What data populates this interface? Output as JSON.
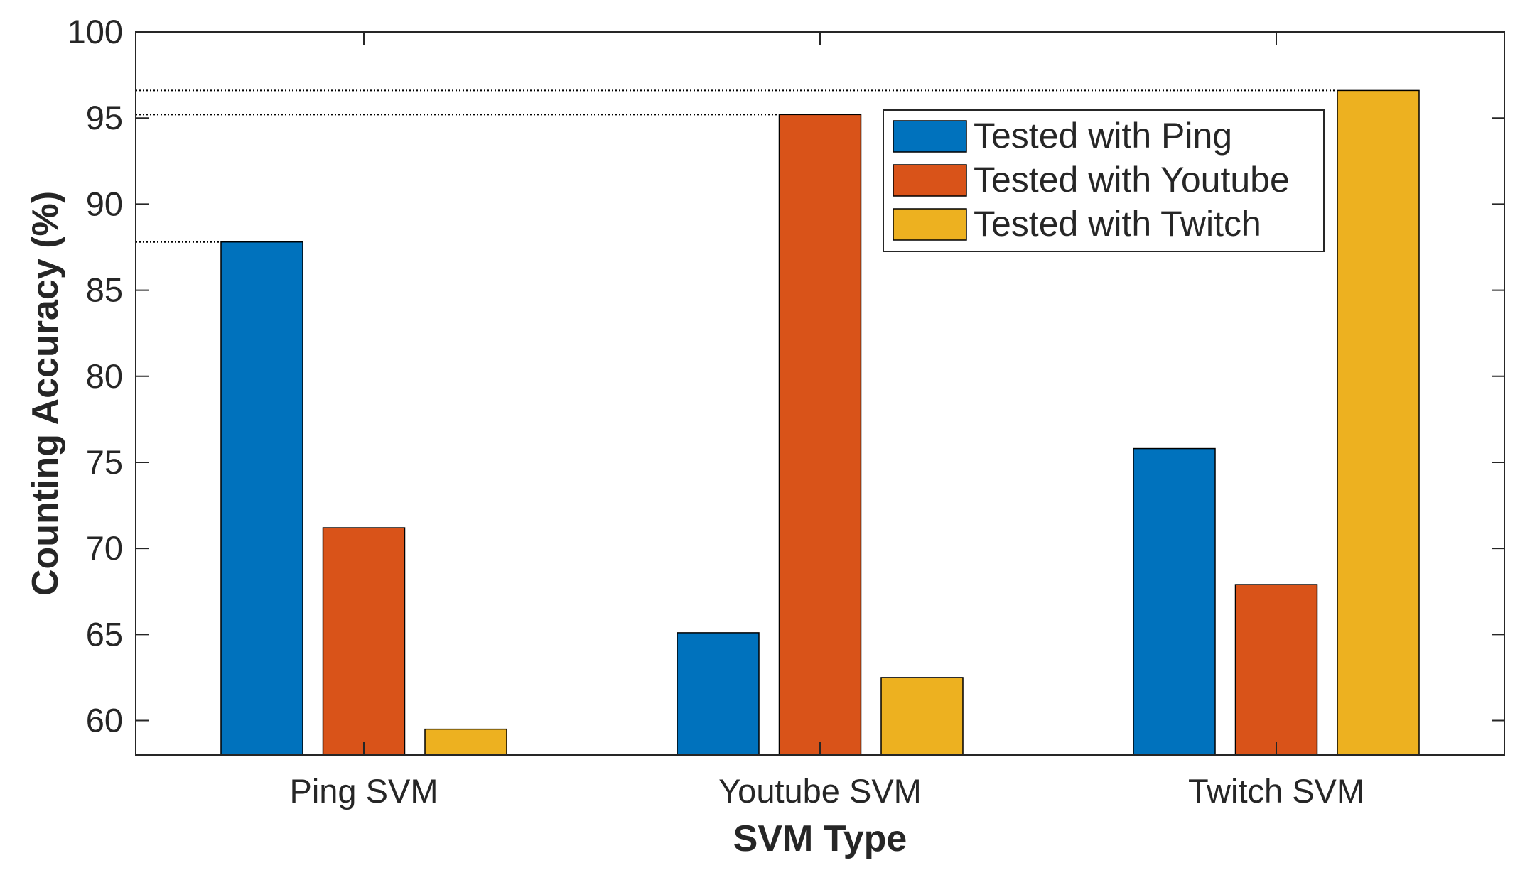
{
  "chart_data": {
    "type": "bar",
    "title": "",
    "xlabel": "SVM Type",
    "ylabel": "Counting Accuracy (%)",
    "categories": [
      "Ping SVM",
      "Youtube SVM",
      "Twitch SVM"
    ],
    "ylim": [
      58,
      100
    ],
    "yticks": [
      60,
      65,
      70,
      75,
      80,
      85,
      90,
      95,
      100
    ],
    "grid": false,
    "legend_position": "top-right-inside",
    "series": [
      {
        "name": "Tested with Ping",
        "color": "#0072BD",
        "values": [
          87.8,
          65.1,
          75.8
        ]
      },
      {
        "name": "Tested with Youtube",
        "color": "#D95319",
        "values": [
          71.2,
          95.2,
          67.9
        ]
      },
      {
        "name": "Tested with Twitch",
        "color": "#EDB120",
        "values": [
          59.5,
          62.5,
          96.6
        ]
      }
    ],
    "reference_lines": [
      {
        "series_index": 0,
        "category_index": 0,
        "value": 87.8,
        "style": "dotted"
      },
      {
        "series_index": 1,
        "category_index": 1,
        "value": 95.2,
        "style": "dotted"
      },
      {
        "series_index": 2,
        "category_index": 2,
        "value": 96.6,
        "style": "dotted"
      }
    ]
  }
}
